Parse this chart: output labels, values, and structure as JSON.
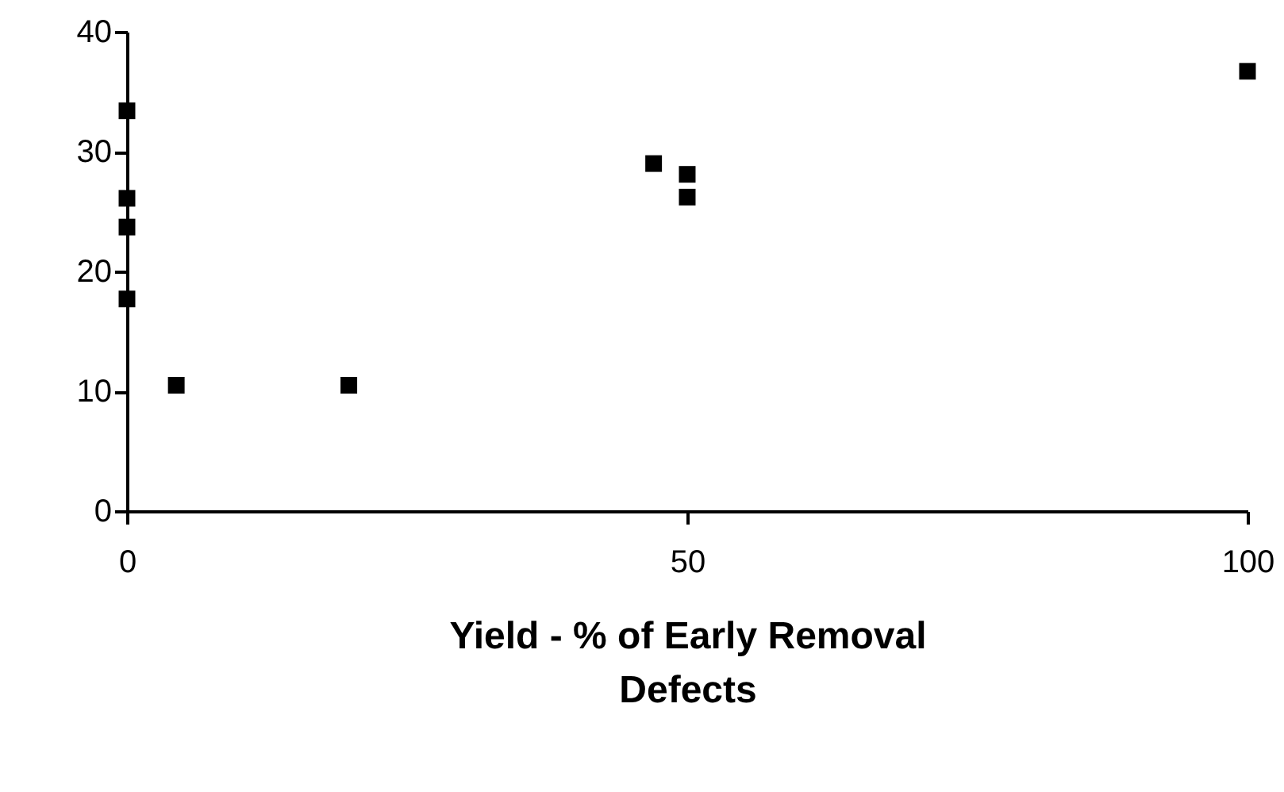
{
  "chart_data": {
    "type": "scatter",
    "xlabel": "Yield - % of Early Removal Defects",
    "x": [
      0,
      0,
      0,
      0,
      4.4,
      19.8,
      47,
      50,
      50,
      100
    ],
    "series": [
      {
        "color": "#000000",
        "values": [
          33.4,
          26.1,
          23.7,
          17.7,
          10.5,
          10.5,
          29.0,
          28.1,
          26.2,
          36.7
        ]
      }
    ],
    "xlim": [
      0,
      100
    ],
    "xticks": [
      0,
      50,
      100
    ],
    "ylim": [
      0,
      40
    ],
    "yticks": [
      0,
      10,
      20,
      30,
      40
    ],
    "marker": "square",
    "grid": false,
    "legend": false
  }
}
